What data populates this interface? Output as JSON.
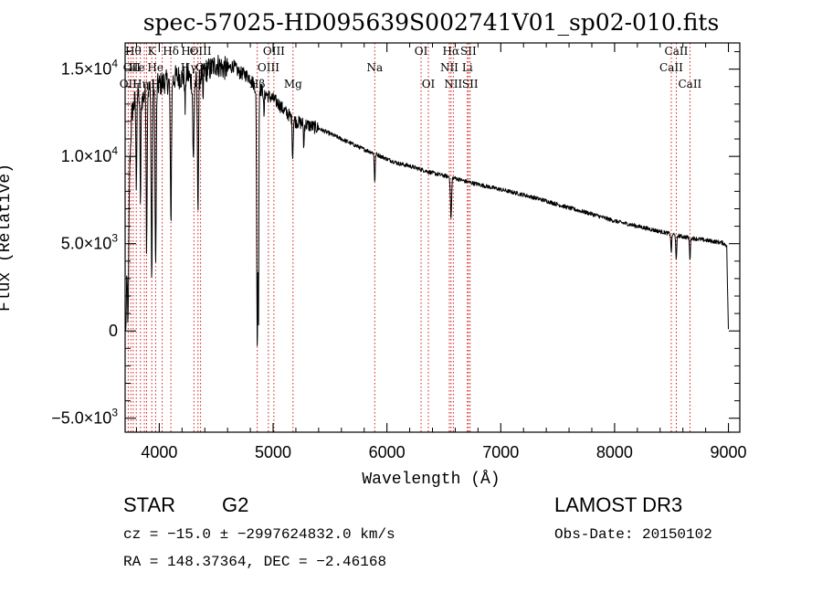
{
  "colors": {
    "spectrum": "#000000",
    "line_marker": "#cc0000",
    "axis": "#000000"
  },
  "chart_data": {
    "type": "line",
    "title": "spec-57025-HD095639S002741V01_sp02-010.fits",
    "xlabel": "Wavelength (Å)",
    "ylabel": "Flux (Relative)",
    "xlim": [
      3700,
      9100
    ],
    "ylim": [
      -5800,
      16500
    ],
    "xticks": [
      {
        "value": 4000,
        "label": "4000"
      },
      {
        "value": 5000,
        "label": "5000"
      },
      {
        "value": 6000,
        "label": "6000"
      },
      {
        "value": 7000,
        "label": "7000"
      },
      {
        "value": 8000,
        "label": "8000"
      },
      {
        "value": 9000,
        "label": "9000"
      }
    ],
    "yticks": [
      {
        "value": -5000,
        "mantissa": "−5.0×10",
        "exp": "3"
      },
      {
        "value": 0,
        "mantissa": "0",
        "exp": ""
      },
      {
        "value": 5000,
        "mantissa": "5.0×10",
        "exp": "3"
      },
      {
        "value": 10000,
        "mantissa": "1.0×10",
        "exp": "4"
      },
      {
        "value": 15000,
        "mantissa": "1.5×10",
        "exp": "4"
      }
    ],
    "continuum": [
      [
        3705,
        -200
      ],
      [
        3715,
        3000
      ],
      [
        3730,
        8000
      ],
      [
        3760,
        12500
      ],
      [
        3800,
        13600
      ],
      [
        3850,
        13300
      ],
      [
        3900,
        13800
      ],
      [
        3950,
        14000
      ],
      [
        4000,
        14100
      ],
      [
        4050,
        14300
      ],
      [
        4100,
        14200
      ],
      [
        4150,
        14600
      ],
      [
        4200,
        14500
      ],
      [
        4250,
        14700
      ],
      [
        4300,
        14100
      ],
      [
        4350,
        14500
      ],
      [
        4400,
        14900
      ],
      [
        4450,
        15000
      ],
      [
        4500,
        15300
      ],
      [
        4550,
        15100
      ],
      [
        4600,
        15000
      ],
      [
        4650,
        15200
      ],
      [
        4700,
        14800
      ],
      [
        4750,
        14700
      ],
      [
        4800,
        14500
      ],
      [
        4850,
        13900
      ],
      [
        4900,
        13800
      ],
      [
        4950,
        13500
      ],
      [
        5000,
        13300
      ],
      [
        5050,
        13000
      ],
      [
        5100,
        12600
      ],
      [
        5150,
        12300
      ],
      [
        5200,
        12000
      ],
      [
        5300,
        11800
      ],
      [
        5400,
        11600
      ],
      [
        5500,
        11300
      ],
      [
        5600,
        11000
      ],
      [
        5700,
        10700
      ],
      [
        5800,
        10400
      ],
      [
        5900,
        10150
      ],
      [
        6000,
        9850
      ],
      [
        6100,
        9600
      ],
      [
        6200,
        9450
      ],
      [
        6300,
        9250
      ],
      [
        6400,
        9050
      ],
      [
        6500,
        8900
      ],
      [
        6600,
        8750
      ],
      [
        6700,
        8550
      ],
      [
        6800,
        8400
      ],
      [
        6900,
        8250
      ],
      [
        7000,
        8100
      ],
      [
        7200,
        7800
      ],
      [
        7400,
        7450
      ],
      [
        7600,
        7050
      ],
      [
        7800,
        6700
      ],
      [
        8000,
        6300
      ],
      [
        8200,
        6000
      ],
      [
        8400,
        5700
      ],
      [
        8600,
        5400
      ],
      [
        8800,
        5200
      ],
      [
        8950,
        5050
      ],
      [
        8985,
        4900
      ],
      [
        8995,
        1500
      ],
      [
        9000,
        50
      ]
    ],
    "absorption": [
      {
        "wave": 3727,
        "depth": 6500,
        "width": 5
      },
      {
        "wave": 3798,
        "depth": 5000,
        "width": 4
      },
      {
        "wave": 3835,
        "depth": 6000,
        "width": 4
      },
      {
        "wave": 3889,
        "depth": 9000,
        "width": 4
      },
      {
        "wave": 3934,
        "depth": 11000,
        "width": 5
      },
      {
        "wave": 3968,
        "depth": 10500,
        "width": 5
      },
      {
        "wave": 4102,
        "depth": 8000,
        "width": 5
      },
      {
        "wave": 4227,
        "depth": 2000,
        "width": 3
      },
      {
        "wave": 4300,
        "depth": 4500,
        "width": 5
      },
      {
        "wave": 4340,
        "depth": 7000,
        "width": 5
      },
      {
        "wave": 4384,
        "depth": 1800,
        "width": 3
      },
      {
        "wave": 4861,
        "depth": 15000,
        "width": 5
      },
      {
        "wave": 4872,
        "depth": 12000,
        "width": 3
      },
      {
        "wave": 4920,
        "depth": 1600,
        "width": 3
      },
      {
        "wave": 5172,
        "depth": 2200,
        "width": 4
      },
      {
        "wave": 5270,
        "depth": 1400,
        "width": 3
      },
      {
        "wave": 5893,
        "depth": 1600,
        "width": 4
      },
      {
        "wave": 6563,
        "depth": 2400,
        "width": 5
      },
      {
        "wave": 8498,
        "depth": 1000,
        "width": 4
      },
      {
        "wave": 8542,
        "depth": 1500,
        "width": 4
      },
      {
        "wave": 8662,
        "depth": 1200,
        "width": 4
      }
    ],
    "line_markers": [
      {
        "wave": 3727,
        "label": "OII",
        "row": 2,
        "show_label": true
      },
      {
        "wave": 3750,
        "label": "",
        "row": 0,
        "show_label": false
      },
      {
        "wave": 3771,
        "label": "Hθ",
        "row": 0,
        "show_label": true
      },
      {
        "wave": 3798,
        "label": "",
        "row": 0,
        "show_label": false
      },
      {
        "wave": 3835,
        "label": "Hη",
        "row": 2,
        "show_label": true
      },
      {
        "wave": 3869,
        "label": "",
        "row": 0,
        "show_label": false
      },
      {
        "wave": 3889,
        "label": "",
        "row": 0,
        "show_label": false
      },
      {
        "wave": 3934,
        "label": "K",
        "row": 0,
        "show_label": true
      },
      {
        "wave": 3968,
        "label": "H",
        "row": 2,
        "show_label": true
      },
      {
        "wave": 4026,
        "label": "",
        "row": 0,
        "show_label": false
      },
      {
        "wave": 4102,
        "label": "Hδ",
        "row": 0,
        "show_label": true
      },
      {
        "wave": 4304,
        "label": "",
        "row": 0,
        "show_label": false
      },
      {
        "wave": 4340,
        "label": "",
        "row": 0,
        "show_label": false
      },
      {
        "wave": 4363,
        "label": "OIII",
        "row": 0,
        "show_label": true
      },
      {
        "wave": 4861,
        "label": "Hβ",
        "row": 2,
        "show_label": true
      },
      {
        "wave": 4959,
        "label": "OIII",
        "row": 1,
        "show_label": true
      },
      {
        "wave": 5007,
        "label": "OIII",
        "row": 0,
        "show_label": true
      },
      {
        "wave": 5175,
        "label": "Mg",
        "row": 2,
        "show_label": true
      },
      {
        "wave": 5893,
        "label": "Na",
        "row": 1,
        "show_label": true
      },
      {
        "wave": 6300,
        "label": "OI",
        "row": 0,
        "show_label": true
      },
      {
        "wave": 6364,
        "label": "OI",
        "row": 2,
        "show_label": true
      },
      {
        "wave": 6548,
        "label": "NII",
        "row": 1,
        "show_label": true
      },
      {
        "wave": 6563,
        "label": "Hα",
        "row": 0,
        "show_label": true
      },
      {
        "wave": 6583,
        "label": "NII",
        "row": 2,
        "show_label": true
      },
      {
        "wave": 6707,
        "label": "Li",
        "row": 1,
        "show_label": true
      },
      {
        "wave": 6716,
        "label": "SII",
        "row": 0,
        "show_label": true
      },
      {
        "wave": 6731,
        "label": "SII",
        "row": 2,
        "show_label": true
      },
      {
        "wave": 8498,
        "label": "CaII",
        "row": 1,
        "show_label": true
      },
      {
        "wave": 8542,
        "label": "CaII",
        "row": 0,
        "show_label": true
      },
      {
        "wave": 8662,
        "label": "CaII",
        "row": 2,
        "show_label": true
      }
    ],
    "stacked_labels": [
      {
        "text": "He",
        "anchor_wave": 3771,
        "row": 1
      },
      {
        "text": "He",
        "anchor_wave": 3934,
        "row": 1
      },
      {
        "text": "OII",
        "anchor_wave": 3727,
        "row": 1
      },
      {
        "text": "Hε",
        "anchor_wave": 4226,
        "row": 0
      },
      {
        "text": "Hγ",
        "anchor_wave": 4226,
        "row": 1
      },
      {
        "text": "OII",
        "anchor_wave": 4363,
        "row": 1
      }
    ]
  },
  "info": {
    "object_class": "STAR",
    "subclass": "G2",
    "survey": "LAMOST DR3",
    "redshift_line": "cz = −15.0 ± −2997624832.0 km/s",
    "obs_date": "Obs-Date: 20150102",
    "coords_line": "RA = 148.37364, DEC =  −2.46168"
  }
}
